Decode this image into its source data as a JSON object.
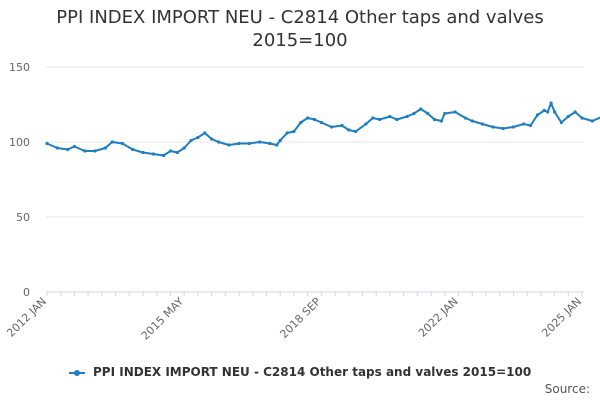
{
  "chart_data": {
    "type": "line",
    "title": "PPI INDEX IMPORT NEU - C2814 Other taps and valves",
    "subtitle": "2015=100",
    "xlabel": "",
    "ylabel": "",
    "ylim": [
      0,
      150
    ],
    "yticks": [
      "0",
      "50",
      "100",
      "150"
    ],
    "xticks": [
      {
        "label": "2012 JAN",
        "date": "2012-01"
      },
      {
        "label": "2015 MAY",
        "date": "2015-05"
      },
      {
        "label": "2018 SEP",
        "date": "2018-09"
      },
      {
        "label": "2022 JAN",
        "date": "2022-01"
      },
      {
        "label": "2025 JAN",
        "date": "2025-01"
      }
    ],
    "grid": true,
    "legend_position": "bottom",
    "color": "#1f7ec2",
    "series": [
      {
        "name": "PPI INDEX IMPORT NEU - C2814 Other taps and valves 2015=100",
        "points": [
          [
            "2012-01",
            99
          ],
          [
            "2012-04",
            96
          ],
          [
            "2012-07",
            95
          ],
          [
            "2012-09",
            97
          ],
          [
            "2012-12",
            94
          ],
          [
            "2013-03",
            94
          ],
          [
            "2013-06",
            96
          ],
          [
            "2013-08",
            100
          ],
          [
            "2013-11",
            99
          ],
          [
            "2014-02",
            95
          ],
          [
            "2014-05",
            93
          ],
          [
            "2014-08",
            92
          ],
          [
            "2014-11",
            91
          ],
          [
            "2015-01",
            94
          ],
          [
            "2015-03",
            93
          ],
          [
            "2015-05",
            96
          ],
          [
            "2015-07",
            101
          ],
          [
            "2015-09",
            103
          ],
          [
            "2015-11",
            106
          ],
          [
            "2016-01",
            102
          ],
          [
            "2016-03",
            100
          ],
          [
            "2016-06",
            98
          ],
          [
            "2016-09",
            99
          ],
          [
            "2016-12",
            99
          ],
          [
            "2017-03",
            100
          ],
          [
            "2017-06",
            99
          ],
          [
            "2017-08",
            98
          ],
          [
            "2017-09",
            101
          ],
          [
            "2017-11",
            106
          ],
          [
            "2018-01",
            107
          ],
          [
            "2018-03",
            113
          ],
          [
            "2018-05",
            116
          ],
          [
            "2018-07",
            115
          ],
          [
            "2018-09",
            113
          ],
          [
            "2018-12",
            110
          ],
          [
            "2019-03",
            111
          ],
          [
            "2019-05",
            108
          ],
          [
            "2019-07",
            107
          ],
          [
            "2019-10",
            112
          ],
          [
            "2019-12",
            116
          ],
          [
            "2020-02",
            115
          ],
          [
            "2020-05",
            117
          ],
          [
            "2020-07",
            115
          ],
          [
            "2020-10",
            117
          ],
          [
            "2020-12",
            119
          ],
          [
            "2021-02",
            122
          ],
          [
            "2021-04",
            119
          ],
          [
            "2021-06",
            115
          ],
          [
            "2021-08",
            114
          ],
          [
            "2021-09",
            119
          ],
          [
            "2021-12",
            120
          ],
          [
            "2022-03",
            116
          ],
          [
            "2022-05",
            114
          ],
          [
            "2022-08",
            112
          ],
          [
            "2022-11",
            110
          ],
          [
            "2023-02",
            109
          ],
          [
            "2023-05",
            110
          ],
          [
            "2023-08",
            112
          ],
          [
            "2023-10",
            111
          ],
          [
            "2023-12",
            118
          ],
          [
            "2024-02",
            121
          ],
          [
            "2024-03",
            120
          ],
          [
            "2024-04",
            126
          ],
          [
            "2024-05",
            120
          ],
          [
            "2024-07",
            113
          ],
          [
            "2024-09",
            117
          ],
          [
            "2024-11",
            120
          ],
          [
            "2025-01",
            116
          ],
          [
            "2025-04",
            114
          ],
          [
            "2025-07",
            117
          ],
          [
            "2025-10",
            115
          ],
          [
            "2026-01",
            115
          ],
          [
            "2026-04",
            116
          ],
          [
            "2026-07",
            114
          ],
          [
            "2026-10",
            117
          ],
          [
            "2027-01",
            119
          ],
          [
            "2027-02",
            121
          ]
        ]
      }
    ]
  },
  "footer": {
    "source_label": "Source:"
  }
}
